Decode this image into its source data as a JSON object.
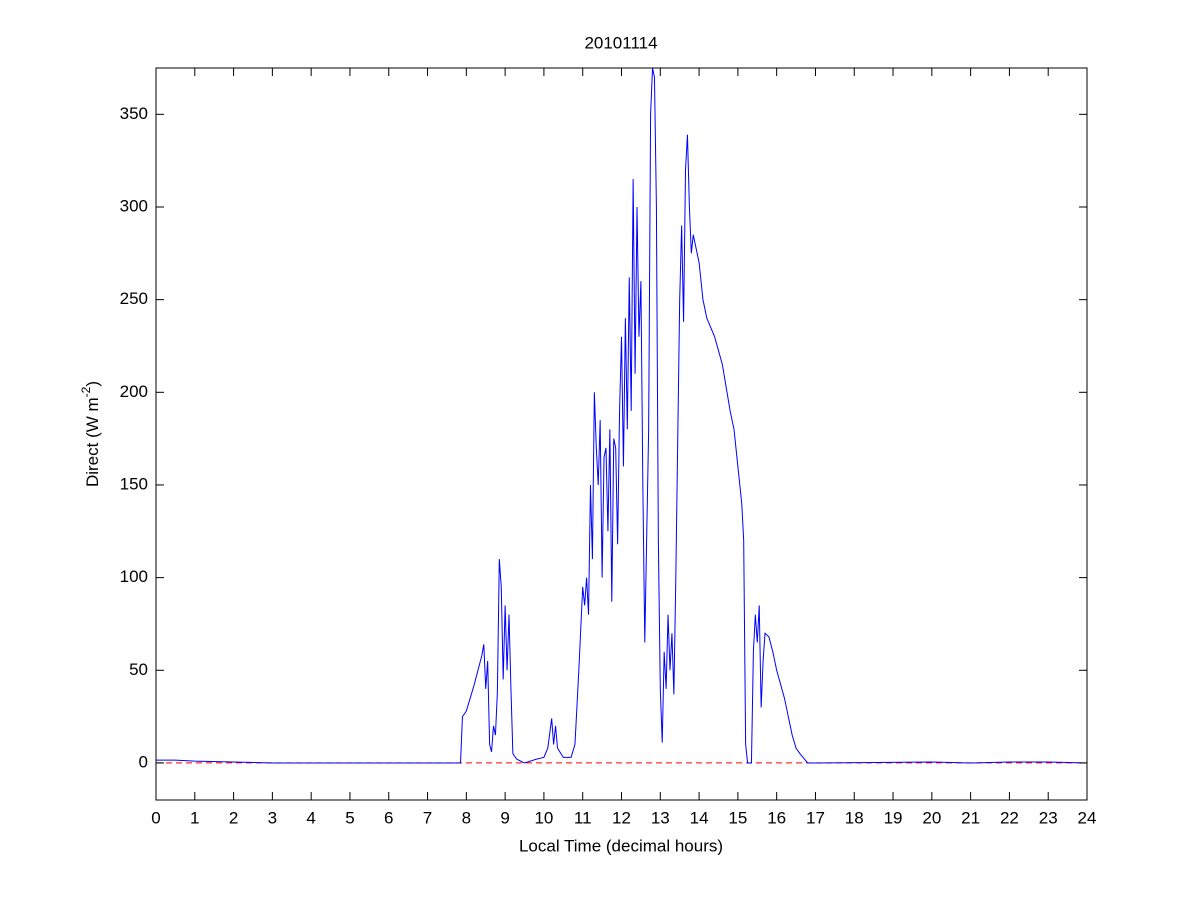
{
  "chart_data": {
    "type": "line",
    "title": "20101114",
    "xlabel": "Local Time (decimal hours)",
    "ylabel": {
      "text": "Direct (W m",
      "sup": "-2",
      "tail": ")"
    },
    "xlim": [
      0,
      24
    ],
    "ylim": [
      -20,
      375
    ],
    "xticks": [
      0,
      1,
      2,
      3,
      4,
      5,
      6,
      7,
      8,
      9,
      10,
      11,
      12,
      13,
      14,
      15,
      16,
      17,
      18,
      19,
      20,
      21,
      22,
      23,
      24
    ],
    "yticks": [
      0,
      50,
      100,
      150,
      200,
      250,
      300,
      350
    ],
    "grid": false,
    "reference_line": {
      "y": 0,
      "color": "#ff0000",
      "style": "dashed"
    },
    "series": [
      {
        "color": "#0000ff",
        "x": [
          0,
          0.5,
          1,
          2,
          3,
          5,
          7.8,
          7.85,
          7.9,
          8,
          8.1,
          8.2,
          8.3,
          8.4,
          8.45,
          8.5,
          8.55,
          8.6,
          8.65,
          8.7,
          8.75,
          8.8,
          8.85,
          8.9,
          8.95,
          9,
          9.05,
          9.1,
          9.15,
          9.2,
          9.3,
          9.5,
          9.8,
          10,
          10.1,
          10.2,
          10.25,
          10.3,
          10.35,
          10.5,
          10.7,
          10.8,
          10.9,
          11,
          11.05,
          11.1,
          11.15,
          11.2,
          11.25,
          11.3,
          11.35,
          11.4,
          11.45,
          11.5,
          11.55,
          11.6,
          11.65,
          11.7,
          11.75,
          11.8,
          11.85,
          11.9,
          11.95,
          12,
          12.05,
          12.1,
          12.15,
          12.2,
          12.25,
          12.3,
          12.35,
          12.4,
          12.45,
          12.5,
          12.55,
          12.6,
          12.7,
          12.75,
          12.8,
          12.85,
          12.9,
          12.95,
          13,
          13.05,
          13.1,
          13.15,
          13.2,
          13.25,
          13.3,
          13.35,
          13.4,
          13.5,
          13.55,
          13.6,
          13.65,
          13.7,
          13.75,
          13.8,
          13.85,
          13.9,
          14,
          14.1,
          14.2,
          14.4,
          14.6,
          14.8,
          14.9,
          15,
          15.1,
          15.15,
          15.2,
          15.25,
          15.35,
          15.4,
          15.45,
          15.5,
          15.55,
          15.6,
          15.65,
          15.7,
          15.8,
          15.9,
          16,
          16.2,
          16.4,
          16.5,
          16.6,
          16.8,
          17,
          20,
          21,
          22,
          23,
          24
        ],
        "values": [
          1.5,
          1.5,
          1,
          0.5,
          0,
          0,
          0,
          0,
          25,
          28,
          35,
          42,
          50,
          58,
          64,
          40,
          55,
          10,
          6,
          20,
          15,
          38,
          110,
          95,
          45,
          85,
          50,
          80,
          40,
          5,
          2,
          0,
          2,
          3,
          8,
          24,
          10,
          20,
          8,
          3,
          3,
          10,
          50,
          95,
          85,
          100,
          80,
          150,
          110,
          200,
          170,
          150,
          185,
          100,
          165,
          170,
          125,
          180,
          87,
          175,
          170,
          118,
          190,
          230,
          160,
          240,
          180,
          262,
          190,
          315,
          210,
          300,
          230,
          260,
          150,
          65,
          180,
          350,
          375,
          370,
          300,
          120,
          40,
          11,
          60,
          40,
          80,
          50,
          70,
          37,
          100,
          250,
          290,
          238,
          320,
          339,
          300,
          275,
          285,
          280,
          270,
          250,
          240,
          230,
          215,
          190,
          180,
          160,
          140,
          120,
          10,
          0,
          0,
          60,
          80,
          65,
          85,
          30,
          55,
          70,
          68,
          60,
          50,
          35,
          15,
          8,
          5,
          0,
          0,
          0.5,
          0,
          0.5,
          0.5,
          0
        ]
      }
    ]
  }
}
